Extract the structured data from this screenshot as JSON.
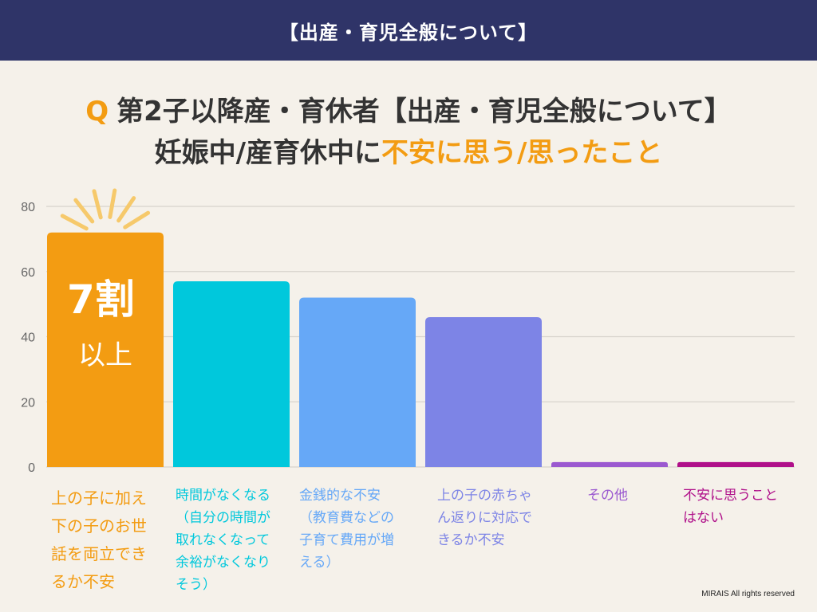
{
  "header": {
    "banner": "【出産・育児全般について】"
  },
  "question": {
    "q_mark": "Q",
    "line1": "第2子以降産・育休者【出産・育児全般について】",
    "line2_prefix": "妊娠中/産育休中に",
    "line2_highlight": "不安に思う/思ったこと"
  },
  "callout": {
    "number": "7割",
    "suffix": "以上"
  },
  "footer": {
    "copyright": "MIRAIS All rights reserved"
  },
  "chart_data": {
    "type": "bar",
    "title": "",
    "xlabel": "",
    "ylabel": "",
    "ylim": [
      0,
      80
    ],
    "yticks": [
      0,
      20,
      40,
      60,
      80
    ],
    "grid": true,
    "categories": [
      "上の子に加え下の子のお世話を両立できるか不安",
      "時間がなくなる（自分の時間が取れなくなって余裕がなくなりそう）",
      "金銭的な不安（教育費などの子育て費用が増える）",
      "上の子の赤ちゃん返りに対応できるか不安",
      "その他",
      "不安に思うことはない"
    ],
    "values": [
      72,
      57,
      52,
      46,
      1.5,
      1.5
    ],
    "colors": [
      "#f39c12",
      "#00c8dc",
      "#66a8f7",
      "#7d84e6",
      "#9b59d0",
      "#b0108a"
    ]
  }
}
